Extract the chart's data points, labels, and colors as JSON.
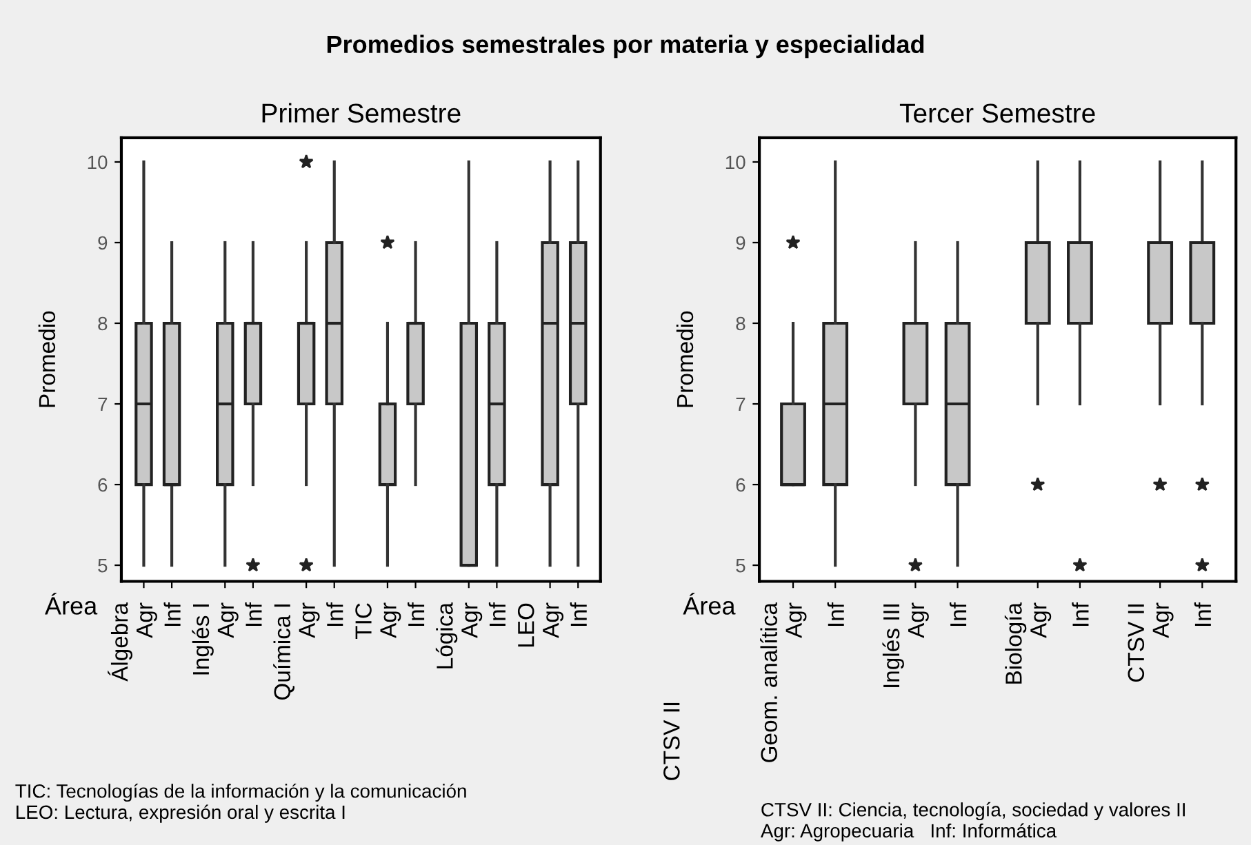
{
  "chart_data": [
    {
      "type": "box",
      "title": "Primer Semestre",
      "ylabel": "Promedio",
      "xlabel": "Área",
      "categories": [
        "Álgebra\nAgr",
        "Inf",
        "Inglés I\nAgr",
        "Inf",
        "Química I\nAgr",
        "Inf",
        "TIC\nAgr",
        "Inf",
        "Lógica\nAgr",
        "Inf",
        "LEO\nAgr",
        "Inf"
      ],
      "boxes": [
        {
          "low": 5,
          "q1": 6,
          "median": 7,
          "q3": 8,
          "high": 10
        },
        {
          "low": 5,
          "q1": 6,
          "median": 6,
          "q3": 8,
          "high": 9
        },
        {
          "low": 5,
          "q1": 6,
          "median": 7,
          "q3": 8,
          "high": 9
        },
        {
          "low": 6,
          "q1": 7,
          "median": 8,
          "q3": 8,
          "high": 9,
          "outliers": [
            5
          ]
        },
        {
          "low": 6,
          "q1": 7,
          "median": 8,
          "q3": 8,
          "high": 9,
          "outliers": [
            10,
            5
          ]
        },
        {
          "low": 5,
          "q1": 7,
          "median": 8,
          "q3": 9,
          "high": 10
        },
        {
          "low": 5,
          "q1": 6,
          "median": 7,
          "q3": 7,
          "high": 8,
          "outliers": [
            9
          ]
        },
        {
          "low": 6,
          "q1": 7,
          "median": 8,
          "q3": 8,
          "high": 9
        },
        {
          "low": 5,
          "q1": 5,
          "median": 5,
          "q3": 8,
          "high": 10
        },
        {
          "low": 5,
          "q1": 6,
          "median": 7,
          "q3": 8,
          "high": 9
        },
        {
          "low": 5,
          "q1": 6,
          "median": 8,
          "q3": 9,
          "high": 10
        },
        {
          "low": 5,
          "q1": 7,
          "median": 8,
          "q3": 9,
          "high": 10
        }
      ],
      "color": "#c8c8c8",
      "ylim": [
        4.8,
        10.3
      ],
      "yticks": [
        5,
        6,
        7,
        8,
        9,
        10
      ],
      "grid": false,
      "legend": false,
      "annotations": [
        "Promedios semestrales por materia y especialidad",
        "TIC: Tecnologías de la información y la comunicación",
        "LEO: Lectura, expresión oral y escrita I"
      ]
    },
    {
      "type": "box",
      "title": "Tercer Semestre",
      "ylabel": "Promedio",
      "xlabel": "Área",
      "categories": [
        "Geom. analítica\nAgr",
        "Inf",
        "Inglés III\nAgr",
        "Inf",
        "Biología\nAgr",
        "Inf",
        "CTSV II\nAgr",
        "Inf"
      ],
      "boxes": [
        {
          "low": 6,
          "q1": 6,
          "median": 6,
          "q3": 7,
          "high": 8,
          "outliers": [
            9
          ]
        },
        {
          "low": 5,
          "q1": 6,
          "median": 7,
          "q3": 8,
          "high": 10
        },
        {
          "low": 6,
          "q1": 7,
          "median": 8,
          "q3": 8,
          "high": 9,
          "outliers": [
            5
          ]
        },
        {
          "low": 5,
          "q1": 6,
          "median": 7,
          "q3": 8,
          "high": 9
        },
        {
          "low": 7,
          "q1": 8,
          "median": 9,
          "q3": 9,
          "high": 10,
          "outliers": [
            6
          ]
        },
        {
          "low": 7,
          "q1": 8,
          "median": 9,
          "q3": 9,
          "high": 10,
          "outliers": [
            5
          ]
        },
        {
          "low": 7,
          "q1": 8,
          "median": 9,
          "q3": 9,
          "high": 10,
          "outliers": [
            6
          ]
        },
        {
          "low": 7,
          "q1": 8,
          "median": 9,
          "q3": 9,
          "high": 10,
          "outliers": [
            6,
            5
          ]
        }
      ],
      "color": "#c8c8c8",
      "ylim": [
        4.8,
        10.3
      ],
      "yticks": [
        5,
        6,
        7,
        8,
        9,
        10
      ],
      "grid": false,
      "legend": false,
      "annotations": [
        "CTSV II",
        "CTSV II: Ciencia, tecnología, sociedad y valores II",
        "Agr: Agropecuaria   Inf: Informática"
      ]
    }
  ]
}
